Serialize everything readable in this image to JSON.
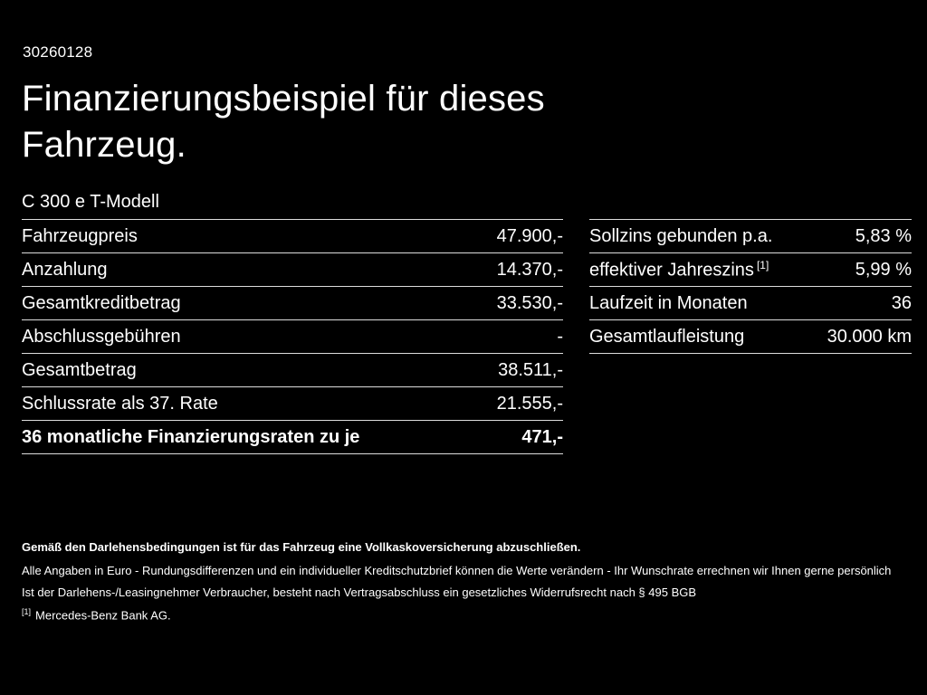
{
  "page": {
    "doc_number": "30260128",
    "title_line1": "Finanzierungsbeispiel für dieses",
    "title_line2": "Fahrzeug.",
    "model": "C 300 e T-Modell"
  },
  "left_table": {
    "rows": [
      {
        "label": "Fahrzeugpreis",
        "value": "47.900,-"
      },
      {
        "label": "Anzahlung",
        "value": "14.370,-"
      },
      {
        "label": "Gesamtkreditbetrag",
        "value": "33.530,-"
      },
      {
        "label": "Abschlussgebühren",
        "value": "-"
      },
      {
        "label": "Gesamtbetrag",
        "value": "38.511,-"
      },
      {
        "label": "Schlussrate als 37. Rate",
        "value": "21.555,-"
      },
      {
        "label": "36 monatliche Finanzierungsraten zu je",
        "value": "471,-"
      }
    ]
  },
  "right_table": {
    "rows": [
      {
        "label": "Sollzins gebunden p.a.",
        "sup": "",
        "value": "5,83 %"
      },
      {
        "label": "effektiver Jahreszins",
        "sup": "[1]",
        "value": "5,99 %"
      },
      {
        "label": "Laufzeit in Monaten",
        "sup": "",
        "value": "36"
      },
      {
        "label": "Gesamtlaufleistung",
        "sup": "",
        "value": "30.000 km"
      }
    ]
  },
  "footer": {
    "line1": "Gemäß den Darlehensbedingungen ist für das Fahrzeug eine Vollkaskoversicherung abzuschließen.",
    "line2": "Alle Angaben in Euro - Rundungsdifferenzen und ein individueller Kreditschutzbrief können die Werte verändern - Ihr Wunschrate errechnen wir Ihnen gerne persönlich",
    "line3": "Ist der Darlehens-/Leasingnehmer Verbraucher, besteht nach Vertragsabschluss ein gesetzliches Widerrufsrecht nach § 495 BGB",
    "footnote_sup": "[1]",
    "footnote_text": "Mercedes-Benz Bank AG."
  },
  "colors": {
    "background": "#000000",
    "text": "#ffffff",
    "divider": "#dcdcdc"
  }
}
